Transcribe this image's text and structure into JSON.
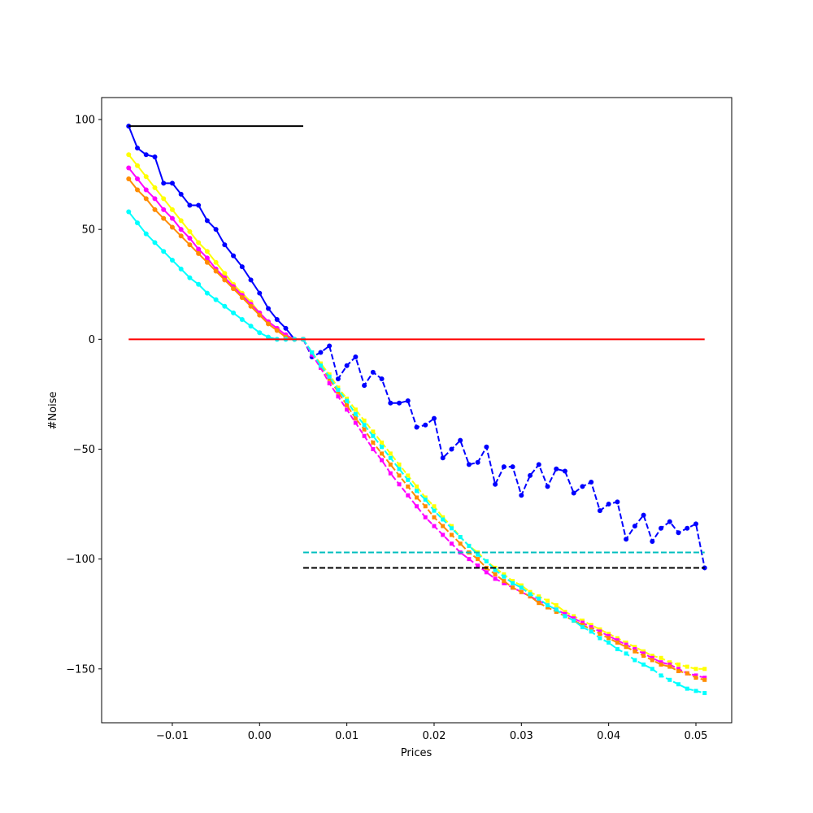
{
  "chart_data": {
    "type": "line",
    "title": "",
    "xlabel": "Prices",
    "ylabel": "#Noise",
    "xlim": [
      -0.0181,
      0.0541
    ],
    "ylim": [
      -174.5,
      110
    ],
    "xticks": [
      -0.01,
      0.0,
      0.01,
      0.02,
      0.03,
      0.04,
      0.05
    ],
    "xtick_labels": [
      "−0.01",
      "0.00",
      "0.01",
      "0.02",
      "0.03",
      "0.04",
      "0.05"
    ],
    "yticks": [
      100,
      50,
      0,
      -50,
      -100,
      -150
    ],
    "ytick_labels": [
      "100",
      "50",
      "0",
      "−50",
      "−100",
      "−150"
    ],
    "grid": false,
    "legend": "none",
    "series": [
      {
        "color": "#0000ff",
        "style": "solid",
        "marker": "circle",
        "x": [
          -0.015,
          -0.014,
          -0.013,
          -0.012,
          -0.011,
          -0.01,
          -0.009,
          -0.008,
          -0.007,
          -0.006,
          -0.005,
          -0.004,
          -0.003,
          -0.002,
          -0.001,
          0.0,
          0.001,
          0.002,
          0.003,
          0.004,
          0.005
        ],
        "y": [
          97,
          87,
          84,
          83,
          71,
          71,
          66,
          61,
          61,
          54,
          50,
          43,
          38,
          33,
          27,
          21,
          14,
          9,
          5,
          0,
          0
        ]
      },
      {
        "color": "#0000ff",
        "style": "dashed",
        "marker": "circle",
        "x": [
          0.005,
          0.006,
          0.007,
          0.008,
          0.009,
          0.01,
          0.011,
          0.012,
          0.013,
          0.014,
          0.015,
          0.016,
          0.017,
          0.018,
          0.019,
          0.02,
          0.021,
          0.022,
          0.023,
          0.024,
          0.025,
          0.026,
          0.027,
          0.028,
          0.029,
          0.03,
          0.031,
          0.032,
          0.033,
          0.034,
          0.035,
          0.036,
          0.037,
          0.038,
          0.039,
          0.04,
          0.041,
          0.042,
          0.043,
          0.044,
          0.045,
          0.046,
          0.047,
          0.048,
          0.049,
          0.05,
          0.051
        ],
        "y": [
          0,
          -8,
          -6,
          -3,
          -18,
          -12,
          -8,
          -21,
          -15,
          -18,
          -29,
          -29,
          -28,
          -40,
          -39,
          -36,
          -54,
          -50,
          -46,
          -57,
          -56,
          -49,
          -66,
          -58,
          -58,
          -71,
          -62,
          -57,
          -67,
          -59,
          -60,
          -70,
          -67,
          -65,
          -78,
          -75,
          -74,
          -91,
          -85,
          -80,
          -92,
          -86,
          -83,
          -88,
          -86,
          -84,
          -104
        ]
      },
      {
        "color": "#ffff00",
        "style": "solid",
        "marker": "circle",
        "x": [
          -0.015,
          -0.014,
          -0.013,
          -0.012,
          -0.011,
          -0.01,
          -0.009,
          -0.008,
          -0.007,
          -0.006,
          -0.005,
          -0.004,
          -0.003,
          -0.002,
          -0.001,
          0.0,
          0.001,
          0.002,
          0.003,
          0.004,
          0.005
        ],
        "y": [
          84,
          79,
          74,
          69,
          64,
          59,
          54,
          49,
          44,
          40,
          35,
          30,
          25,
          21,
          17,
          12,
          8,
          5,
          2,
          0,
          0
        ]
      },
      {
        "color": "#ff00ff",
        "style": "solid",
        "marker": "circle",
        "x": [
          -0.015,
          -0.014,
          -0.013,
          -0.012,
          -0.011,
          -0.01,
          -0.009,
          -0.008,
          -0.007,
          -0.006,
          -0.005,
          -0.004,
          -0.003,
          -0.002,
          -0.001,
          0.0,
          0.001,
          0.002,
          0.003,
          0.004,
          0.005
        ],
        "y": [
          78,
          73,
          68,
          64,
          59,
          55,
          50,
          46,
          41,
          37,
          32,
          28,
          24,
          20,
          16,
          12,
          8,
          5,
          2,
          0,
          0
        ]
      },
      {
        "color": "#ff8c00",
        "style": "solid",
        "marker": "circle",
        "x": [
          -0.015,
          -0.014,
          -0.013,
          -0.012,
          -0.011,
          -0.01,
          -0.009,
          -0.008,
          -0.007,
          -0.006,
          -0.005,
          -0.004,
          -0.003,
          -0.002,
          -0.001,
          0.0,
          0.001,
          0.002,
          0.003,
          0.004,
          0.005
        ],
        "y": [
          73,
          68,
          64,
          59,
          55,
          51,
          47,
          43,
          39,
          35,
          31,
          27,
          23,
          19,
          15,
          11,
          7,
          4,
          1,
          0,
          0
        ]
      },
      {
        "color": "#00ffff",
        "style": "solid",
        "marker": "circle",
        "x": [
          -0.015,
          -0.014,
          -0.013,
          -0.012,
          -0.011,
          -0.01,
          -0.009,
          -0.008,
          -0.007,
          -0.006,
          -0.005,
          -0.004,
          -0.003,
          -0.002,
          -0.001,
          0.0,
          0.001,
          0.002,
          0.003,
          0.004,
          0.005
        ],
        "y": [
          58,
          53,
          48,
          44,
          40,
          36,
          32,
          28,
          25,
          21,
          18,
          15,
          12,
          9,
          6,
          3,
          1,
          0,
          0,
          0,
          0
        ]
      },
      {
        "color": "#ffff00",
        "style": "dashed",
        "marker": "square",
        "x": [
          0.005,
          0.006,
          0.007,
          0.008,
          0.009,
          0.01,
          0.011,
          0.012,
          0.013,
          0.014,
          0.015,
          0.016,
          0.017,
          0.018,
          0.019,
          0.02,
          0.021,
          0.022,
          0.023,
          0.024,
          0.025,
          0.026,
          0.027,
          0.028,
          0.029,
          0.03,
          0.031,
          0.032,
          0.033,
          0.034,
          0.035,
          0.036,
          0.037,
          0.038,
          0.039,
          0.04,
          0.041,
          0.042,
          0.043,
          0.044,
          0.045,
          0.046,
          0.047,
          0.048,
          0.049,
          0.05,
          0.051
        ],
        "y": [
          0,
          -6,
          -11,
          -16,
          -22,
          -27,
          -32,
          -37,
          -42,
          -47,
          -52,
          -57,
          -62,
          -67,
          -72,
          -76,
          -81,
          -85,
          -90,
          -94,
          -97,
          -101,
          -104,
          -107,
          -110,
          -112,
          -115,
          -117,
          -119,
          -121,
          -124,
          -126,
          -128,
          -130,
          -132,
          -134,
          -136,
          -138,
          -140,
          -142,
          -144,
          -145,
          -147,
          -148,
          -149,
          -150,
          -150
        ]
      },
      {
        "color": "#ff00ff",
        "style": "dashed",
        "marker": "square",
        "x": [
          0.005,
          0.006,
          0.007,
          0.008,
          0.009,
          0.01,
          0.011,
          0.012,
          0.013,
          0.014,
          0.015,
          0.016,
          0.017,
          0.018,
          0.019,
          0.02,
          0.021,
          0.022,
          0.023,
          0.024,
          0.025,
          0.026,
          0.027,
          0.028,
          0.029,
          0.03,
          0.031,
          0.032,
          0.033,
          0.034,
          0.035,
          0.036,
          0.037,
          0.038,
          0.039,
          0.04,
          0.041,
          0.042,
          0.043,
          0.044,
          0.045,
          0.046,
          0.047,
          0.048,
          0.049,
          0.05,
          0.051
        ],
        "y": [
          0,
          -7,
          -13,
          -20,
          -26,
          -32,
          -38,
          -44,
          -50,
          -55,
          -61,
          -66,
          -71,
          -76,
          -81,
          -85,
          -89,
          -93,
          -97,
          -100,
          -103,
          -106,
          -109,
          -111,
          -113,
          -115,
          -117,
          -119,
          -121,
          -123,
          -125,
          -127,
          -129,
          -131,
          -133,
          -135,
          -137,
          -139,
          -141,
          -143,
          -145,
          -147,
          -148,
          -150,
          -152,
          -153,
          -154
        ]
      },
      {
        "color": "#ff8c00",
        "style": "dashed",
        "marker": "square",
        "x": [
          0.005,
          0.006,
          0.007,
          0.008,
          0.009,
          0.01,
          0.011,
          0.012,
          0.013,
          0.014,
          0.015,
          0.016,
          0.017,
          0.018,
          0.019,
          0.02,
          0.021,
          0.022,
          0.023,
          0.024,
          0.025,
          0.026,
          0.027,
          0.028,
          0.029,
          0.03,
          0.031,
          0.032,
          0.033,
          0.034,
          0.035,
          0.036,
          0.037,
          0.038,
          0.039,
          0.04,
          0.041,
          0.042,
          0.043,
          0.044,
          0.045,
          0.046,
          0.047,
          0.048,
          0.049,
          0.05,
          0.051
        ],
        "y": [
          0,
          -6,
          -12,
          -18,
          -24,
          -30,
          -36,
          -41,
          -47,
          -52,
          -57,
          -62,
          -67,
          -72,
          -76,
          -81,
          -85,
          -89,
          -93,
          -97,
          -100,
          -104,
          -107,
          -110,
          -113,
          -115,
          -117,
          -120,
          -122,
          -124,
          -126,
          -128,
          -130,
          -132,
          -134,
          -136,
          -138,
          -140,
          -142,
          -144,
          -146,
          -148,
          -149,
          -151,
          -152,
          -154,
          -155
        ]
      },
      {
        "color": "#00ffff",
        "style": "dashed",
        "marker": "square",
        "x": [
          0.005,
          0.006,
          0.007,
          0.008,
          0.009,
          0.01,
          0.011,
          0.012,
          0.013,
          0.014,
          0.015,
          0.016,
          0.017,
          0.018,
          0.019,
          0.02,
          0.021,
          0.022,
          0.023,
          0.024,
          0.025,
          0.026,
          0.027,
          0.028,
          0.029,
          0.03,
          0.031,
          0.032,
          0.033,
          0.034,
          0.035,
          0.036,
          0.037,
          0.038,
          0.039,
          0.04,
          0.041,
          0.042,
          0.043,
          0.044,
          0.045,
          0.046,
          0.047,
          0.048,
          0.049,
          0.05,
          0.051
        ],
        "y": [
          0,
          -6,
          -12,
          -17,
          -23,
          -28,
          -34,
          -39,
          -44,
          -49,
          -54,
          -59,
          -64,
          -69,
          -73,
          -78,
          -82,
          -86,
          -90,
          -94,
          -98,
          -101,
          -105,
          -108,
          -111,
          -113,
          -116,
          -118,
          -121,
          -123,
          -126,
          -128,
          -131,
          -133,
          -136,
          -138,
          -141,
          -143,
          -146,
          -148,
          -150,
          -153,
          -155,
          -157,
          -159,
          -160,
          -161
        ]
      },
      {
        "color": "#ff0000",
        "style": "solid",
        "marker": "none",
        "x": [
          -0.015,
          0.051
        ],
        "y": [
          0,
          0
        ]
      },
      {
        "color": "#000000",
        "style": "solid",
        "marker": "none",
        "x": [
          -0.015,
          0.005
        ],
        "y": [
          97,
          97
        ]
      },
      {
        "color": "#00bfbf",
        "style": "dashed",
        "marker": "none",
        "x": [
          0.005,
          0.051
        ],
        "y": [
          -97,
          -97
        ]
      },
      {
        "color": "#000000",
        "style": "dashed",
        "marker": "none",
        "x": [
          0.005,
          0.051
        ],
        "y": [
          -104,
          -104
        ]
      }
    ]
  }
}
